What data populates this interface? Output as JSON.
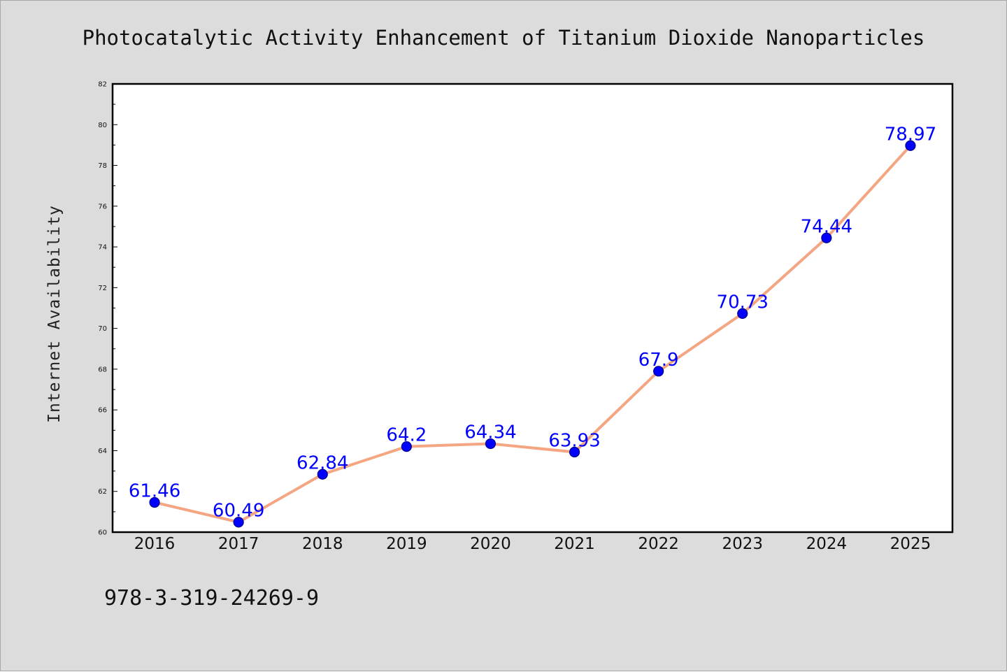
{
  "chart_data": {
    "type": "line",
    "title": "Photocatalytic Activity Enhancement of Titanium Dioxide Nanoparticles",
    "xlabel": "",
    "ylabel": "Internet Availability",
    "categories": [
      "2016",
      "2017",
      "2018",
      "2019",
      "2020",
      "2021",
      "2022",
      "2023",
      "2024",
      "2025"
    ],
    "series": [
      {
        "values": [
          61.46,
          60.49,
          62.84,
          64.2,
          64.34,
          63.93,
          67.9,
          70.73,
          74.44,
          78.97
        ],
        "data_labels": [
          "61.46",
          "60.49",
          "62.84",
          "64.2",
          "64.34",
          "63.93",
          "67.9",
          "70.73",
          "74.44",
          "78.97"
        ]
      }
    ],
    "ylim": [
      60,
      82
    ],
    "yticks": [
      60,
      62,
      64,
      66,
      68,
      70,
      72,
      74,
      76,
      78,
      80,
      82
    ],
    "grid": false,
    "legend": "none"
  },
  "footer_text": "978-3-319-24269-9",
  "colors": {
    "line": "#f4a582",
    "marker": "#0000ff",
    "marker_edge": "#00008b",
    "data_label": "#0000ff",
    "plot_background": "#ffffff",
    "figure_background": "#dcdcdc"
  }
}
